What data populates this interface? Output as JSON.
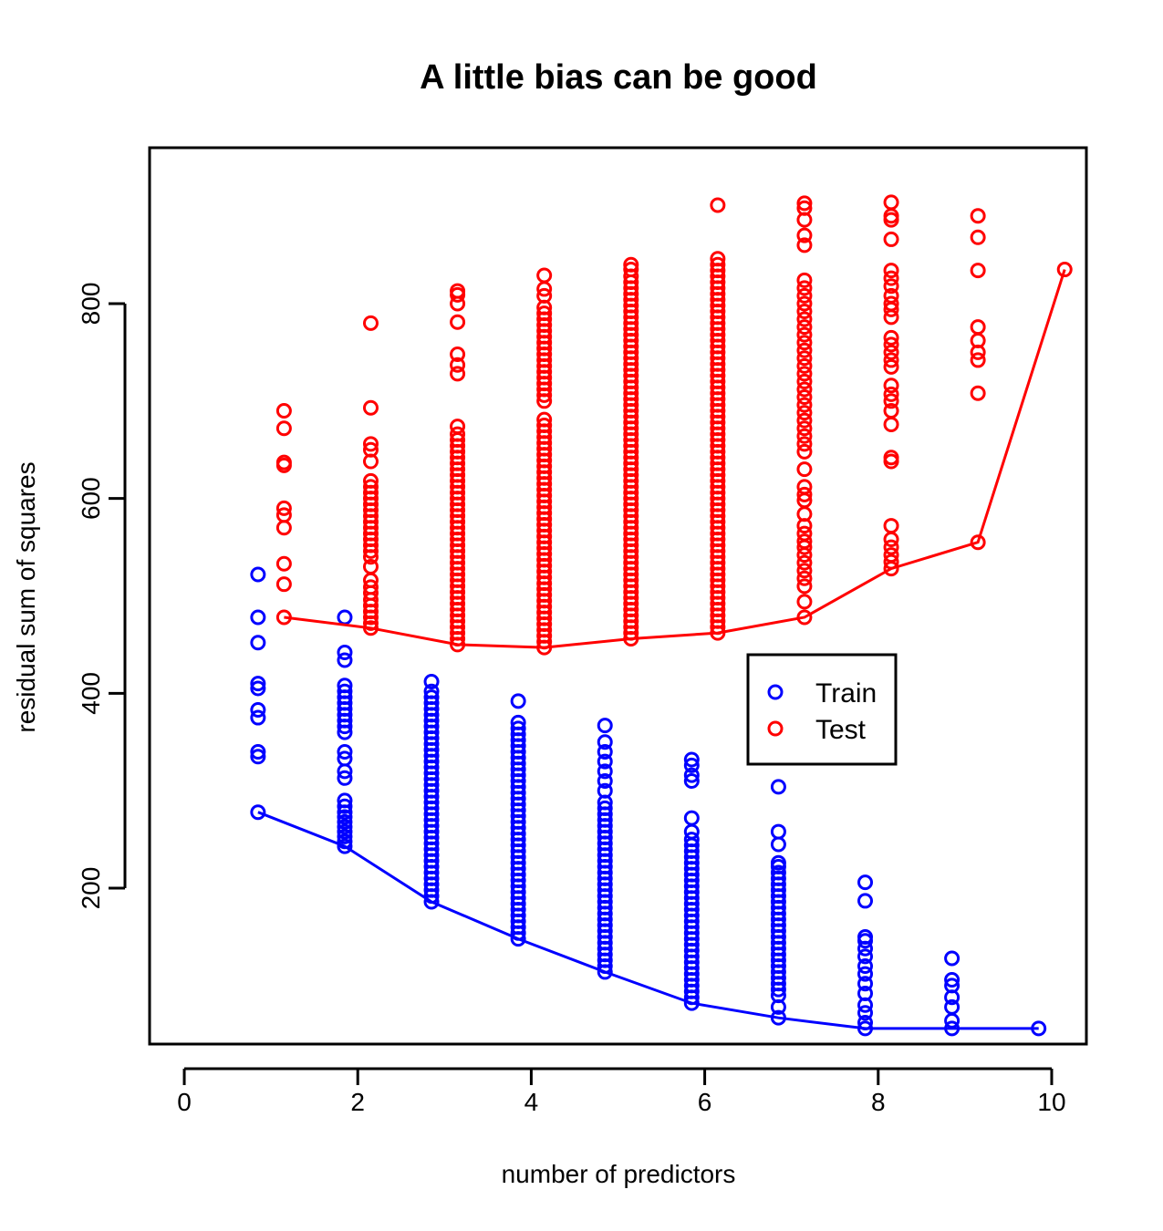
{
  "chart_data": {
    "type": "scatter",
    "title": "A little bias can be good",
    "xlabel": "number of predictors",
    "ylabel": "residual sum of squares",
    "xlim": [
      -0.4,
      10.4
    ],
    "ylim": [
      40,
      960
    ],
    "xticks": [
      0,
      2,
      4,
      6,
      8,
      10
    ],
    "yticks": [
      200,
      400,
      600,
      800
    ],
    "grid": false,
    "legend_position": "right-middle",
    "series": [
      {
        "name": "Train",
        "color": "#0000ff",
        "x_offset": -0.15,
        "points": [
          {
            "k": 1,
            "values": [
              278,
              335,
              340,
              375,
              383,
              405,
              410,
              452,
              478,
              522
            ]
          },
          {
            "k": 2,
            "values": [
              243,
              248,
              253,
              258,
              263,
              268,
              273,
              278,
              284,
              290,
              313,
              320,
              333,
              340,
              360,
              366,
              372,
              378,
              384,
              390,
              396,
              402,
              408,
              434,
              442,
              478
            ]
          },
          {
            "k": 3,
            "values": [
              186,
              192,
              198,
              204,
              210,
              216,
              222,
              228,
              234,
              240,
              246,
              252,
              258,
              264,
              270,
              276,
              282,
              288,
              294,
              300,
              306,
              312,
              318,
              324,
              330,
              336,
              342,
              348,
              354,
              360,
              366,
              372,
              378,
              384,
              390,
              396,
              402,
              412
            ]
          },
          {
            "k": 4,
            "values": [
              148,
              154,
              160,
              166,
              172,
              178,
              184,
              190,
              196,
              202,
              208,
              214,
              220,
              226,
              232,
              238,
              244,
              250,
              256,
              262,
              268,
              274,
              280,
              286,
              292,
              298,
              304,
              310,
              316,
              322,
              328,
              334,
              340,
              346,
              352,
              358,
              364,
              370,
              392
            ]
          },
          {
            "k": 5,
            "values": [
              114,
              120,
              126,
              132,
              138,
              144,
              150,
              156,
              162,
              168,
              174,
              180,
              186,
              192,
              198,
              204,
              210,
              216,
              222,
              228,
              234,
              240,
              246,
              252,
              258,
              264,
              270,
              276,
              282,
              288,
              300,
              310,
              320,
              330,
              340,
              350,
              367
            ]
          },
          {
            "k": 6,
            "values": [
              82,
              88,
              94,
              100,
              106,
              112,
              118,
              124,
              130,
              136,
              142,
              148,
              154,
              160,
              166,
              172,
              178,
              184,
              190,
              196,
              202,
              208,
              214,
              220,
              226,
              232,
              238,
              244,
              250,
              258,
              272,
              310,
              316,
              326,
              332
            ]
          },
          {
            "k": 7,
            "values": [
              67,
              78,
              90,
              96,
              102,
              108,
              114,
              120,
              126,
              132,
              138,
              144,
              150,
              156,
              162,
              168,
              174,
              180,
              186,
              192,
              198,
              204,
              210,
              216,
              222,
              226,
              245,
              258,
              304
            ]
          },
          {
            "k": 8,
            "values": [
              56,
              62,
              72,
              80,
              92,
              102,
              112,
              120,
              130,
              138,
              146,
              150,
              187,
              206
            ]
          },
          {
            "k": 9,
            "values": [
              56,
              64,
              78,
              88,
              100,
              106,
              128
            ]
          },
          {
            "k": 10,
            "values": [
              56
            ]
          }
        ],
        "curve": [
          278,
          243,
          186,
          148,
          114,
          82,
          67,
          56,
          56,
          56
        ]
      },
      {
        "name": "Test",
        "color": "#ff0000",
        "x_offset": 0.15,
        "points": [
          {
            "k": 1,
            "values": [
              478,
              512,
              533,
              570,
              583,
              590,
              634,
              637,
              672,
              690
            ]
          },
          {
            "k": 2,
            "values": [
              467,
              472,
              478,
              484,
              490,
              496,
              503,
              509,
              516,
              530,
              540,
              546,
              552,
              558,
              564,
              570,
              576,
              582,
              588,
              594,
              600,
              606,
              612,
              618,
              638,
              650,
              656,
              693,
              780
            ]
          },
          {
            "k": 3,
            "values": [
              450,
              456,
              462,
              468,
              474,
              480,
              486,
              492,
              498,
              504,
              510,
              516,
              522,
              528,
              534,
              540,
              546,
              552,
              558,
              564,
              570,
              576,
              582,
              588,
              594,
              600,
              606,
              612,
              618,
              624,
              630,
              636,
              642,
              648,
              654,
              660,
              666,
              674,
              728,
              737,
              748,
              781,
              800,
              809,
              813
            ]
          },
          {
            "k": 4,
            "values": [
              447,
              453,
              459,
              465,
              471,
              477,
              483,
              489,
              495,
              501,
              507,
              513,
              519,
              525,
              531,
              537,
              543,
              549,
              555,
              561,
              567,
              573,
              579,
              585,
              591,
              597,
              603,
              609,
              615,
              621,
              627,
              633,
              639,
              645,
              651,
              657,
              663,
              669,
              675,
              681,
              700,
              706,
              712,
              718,
              724,
              730,
              736,
              742,
              748,
              754,
              760,
              766,
              772,
              778,
              784,
              790,
              796,
              808,
              815,
              829
            ]
          },
          {
            "k": 5,
            "values": [
              456,
              462,
              468,
              474,
              480,
              486,
              492,
              498,
              504,
              510,
              516,
              522,
              528,
              534,
              540,
              546,
              552,
              558,
              564,
              570,
              576,
              582,
              588,
              594,
              600,
              606,
              612,
              618,
              624,
              630,
              636,
              642,
              648,
              654,
              660,
              666,
              672,
              678,
              684,
              690,
              696,
              702,
              708,
              714,
              720,
              726,
              732,
              738,
              744,
              750,
              756,
              762,
              768,
              774,
              780,
              786,
              792,
              798,
              804,
              810,
              816,
              822,
              828,
              835,
              840
            ]
          },
          {
            "k": 6,
            "values": [
              462,
              468,
              474,
              480,
              486,
              492,
              498,
              504,
              510,
              516,
              522,
              528,
              534,
              540,
              546,
              552,
              558,
              564,
              570,
              576,
              582,
              588,
              594,
              600,
              606,
              612,
              618,
              624,
              630,
              636,
              642,
              648,
              654,
              660,
              666,
              672,
              678,
              684,
              690,
              696,
              702,
              708,
              714,
              720,
              726,
              732,
              738,
              744,
              750,
              756,
              762,
              768,
              774,
              780,
              786,
              792,
              798,
              804,
              810,
              816,
              822,
              828,
              834,
              840,
              846,
              901
            ]
          },
          {
            "k": 7,
            "values": [
              478,
              494,
              510,
              518,
              526,
              534,
              542,
              550,
              556,
              564,
              572,
              584,
              598,
              604,
              612,
              630,
              648,
              656,
              664,
              672,
              680,
              688,
              696,
              704,
              712,
              720,
              728,
              736,
              744,
              752,
              760,
              768,
              776,
              784,
              792,
              800,
              808,
              816,
              824,
              860,
              870,
              886,
              898,
              903
            ]
          },
          {
            "k": 8,
            "values": [
              528,
              535,
              542,
              550,
              558,
              572,
              638,
              642,
              676,
              690,
              700,
              707,
              716,
              735,
              742,
              750,
              758,
              765,
              786,
              794,
              800,
              808,
              818,
              826,
              834,
              866,
              886,
              890,
              904
            ]
          },
          {
            "k": 9,
            "values": [
              555,
              708,
              742,
              750,
              762,
              776,
              834,
              868,
              890
            ]
          },
          {
            "k": 10,
            "values": [
              835
            ]
          }
        ],
        "curve": [
          478,
          467,
          450,
          447,
          456,
          462,
          478,
          528,
          555,
          835
        ]
      }
    ]
  }
}
